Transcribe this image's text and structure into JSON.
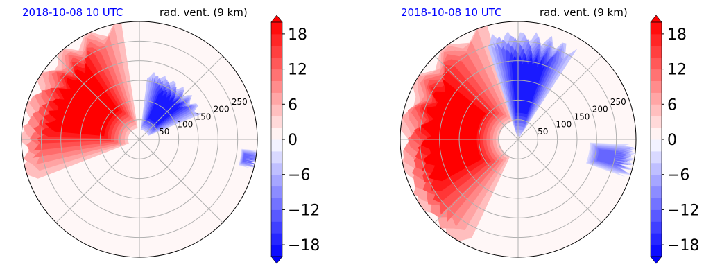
{
  "chart_data": [
    {
      "type": "polar-contour",
      "timestamp": "2018-10-08 10 UTC",
      "title": "rad. vent. (9 km)",
      "r_ticks": [
        "50",
        "100",
        "150",
        "200",
        "250"
      ],
      "r_max": 300,
      "theta_grid_step_deg": 45,
      "field_sketch": [
        {
          "sign": "positive",
          "sector_deg": [
            95,
            205
          ],
          "r_range": [
            20,
            300
          ],
          "peak": 20
        },
        {
          "sign": "negative",
          "sector_deg": [
            20,
            85
          ],
          "r_range": [
            20,
            170
          ],
          "peak": -18
        },
        {
          "sign": "negative",
          "sector_deg": [
            -15,
            -5
          ],
          "r_range": [
            260,
            295
          ],
          "peak": -12
        }
      ]
    },
    {
      "type": "polar-contour",
      "timestamp": "2018-10-08 10 UTC",
      "title": "rad. vent. (9 km)",
      "r_ticks": [
        "50",
        "100",
        "150",
        "200",
        "250"
      ],
      "r_max": 300,
      "theta_grid_step_deg": 45,
      "field_sketch": [
        {
          "sign": "positive",
          "sector_deg": [
            100,
            250
          ],
          "r_range": [
            40,
            300
          ],
          "peak": 20
        },
        {
          "sign": "negative",
          "sector_deg": [
            55,
            110
          ],
          "r_range": [
            0,
            270
          ],
          "peak": -18
        },
        {
          "sign": "negative",
          "sector_deg": [
            -20,
            -2
          ],
          "r_range": [
            180,
            290
          ],
          "peak": -12
        }
      ]
    }
  ],
  "colorbar": {
    "ticks": [
      "18",
      "12",
      "6",
      "0",
      "−6",
      "−12",
      "−18"
    ],
    "tick_values": [
      18,
      12,
      6,
      0,
      -6,
      -12,
      -18
    ],
    "vmin": -20,
    "vmax": 20,
    "levels": 20,
    "color_neg": "#0000ff",
    "color_zero": "#ffffff",
    "color_pos": "#ff0000"
  },
  "colors": {
    "timestamp_text": "#0000ff",
    "grid": "#b0b0b0"
  }
}
